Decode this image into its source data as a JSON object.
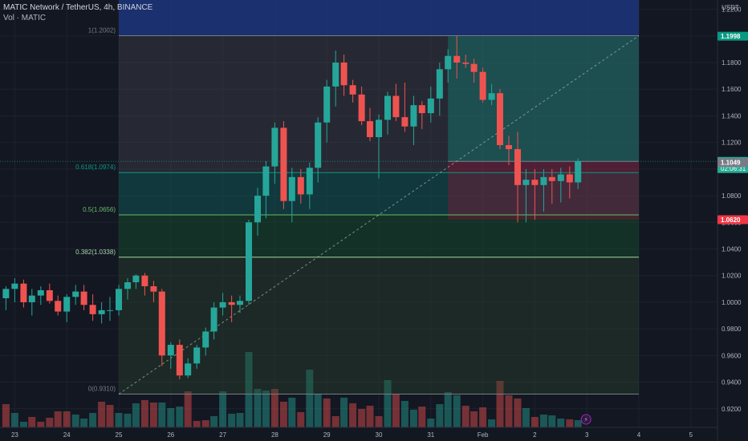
{
  "header": {
    "title": "MATIC Network / TetherUS, 4h, BINANCE",
    "volume_label": "Vol · MATIC"
  },
  "chart_data": {
    "type": "candlestick",
    "yaxis": {
      "unit": "USDT",
      "ticks": [
        "1.2200",
        "1.2000",
        "1.1800",
        "1.1600",
        "1.1400",
        "1.1200",
        "1.1000",
        "1.0800",
        "1.0600",
        "1.0400",
        "1.0200",
        "1.0000",
        "0.9800",
        "0.9600",
        "0.9400",
        "0.9200"
      ],
      "range": [
        0.906,
        1.227
      ]
    },
    "xaxis": {
      "ticks": [
        {
          "label": "23",
          "day": 23
        },
        {
          "label": "24",
          "day": 24
        },
        {
          "label": "25",
          "day": 25
        },
        {
          "label": "26",
          "day": 26
        },
        {
          "label": "27",
          "day": 27
        },
        {
          "label": "28",
          "day": 28
        },
        {
          "label": "29",
          "day": 29
        },
        {
          "label": "30",
          "day": 30
        },
        {
          "label": "31",
          "day": 31
        },
        {
          "label": "Feb",
          "day": 32
        },
        {
          "label": "2",
          "day": 33
        },
        {
          "label": "3",
          "day": 34
        },
        {
          "label": "4",
          "day": 35
        },
        {
          "label": "5",
          "day": 36
        }
      ]
    },
    "price_badges": [
      {
        "label": "1.1998",
        "value": 1.1998,
        "color": "#089981"
      },
      {
        "label": "1.1058",
        "value": 1.1058,
        "color": "#22ab94",
        "sub": "02:06:31"
      },
      {
        "label": "1.1049",
        "value": 1.1049,
        "color": "#787b86"
      },
      {
        "label": "1.0620",
        "value": 1.062,
        "color": "#f23645"
      }
    ],
    "fib_levels": [
      {
        "label": "1(1.2002)",
        "value": 1.2002
      },
      {
        "label": "0.618(1.0974)",
        "value": 1.0974
      },
      {
        "label": "0.5(1.0656)",
        "value": 1.0656
      },
      {
        "label": "0.382(1.0338)",
        "value": 1.0338
      },
      {
        "label": "0(0.9310)",
        "value": 0.931
      }
    ],
    "fib_day_range": [
      25.0,
      35.0
    ],
    "position": {
      "entry": 1.1058,
      "target": 1.1998,
      "stop": 1.062,
      "day_range": [
        31.33,
        35.0
      ]
    },
    "candles": [
      [
        22.83,
        1.003,
        1.012,
        0.994,
        1.01
      ],
      [
        23.0,
        1.01,
        1.018,
        1.0,
        1.014
      ],
      [
        23.17,
        1.014,
        1.017,
        0.996,
        1.0
      ],
      [
        23.33,
        1.0,
        1.01,
        0.99,
        1.005
      ],
      [
        23.5,
        1.005,
        1.012,
        0.998,
        1.009
      ],
      [
        23.67,
        1.009,
        1.014,
        0.999,
        1.001
      ],
      [
        23.83,
        1.001,
        1.005,
        0.99,
        0.993
      ],
      [
        24.0,
        0.993,
        1.006,
        0.985,
        1.004
      ],
      [
        24.17,
        1.004,
        1.013,
        0.998,
        1.008
      ],
      [
        24.33,
        1.008,
        1.013,
        0.994,
        0.998
      ],
      [
        24.5,
        0.998,
        1.006,
        0.986,
        0.991
      ],
      [
        24.67,
        0.991,
        1.0,
        0.984,
        0.994
      ],
      [
        24.83,
        0.994,
        1.004,
        0.986,
        0.994
      ],
      [
        25.0,
        0.994,
        1.013,
        0.99,
        1.01
      ],
      [
        25.17,
        1.01,
        1.018,
        1.002,
        1.015
      ],
      [
        25.33,
        1.015,
        1.021,
        1.01,
        1.02
      ],
      [
        25.5,
        1.02,
        1.022,
        1.005,
        1.012
      ],
      [
        25.67,
        1.012,
        1.016,
        1.0,
        1.008
      ],
      [
        25.83,
        1.008,
        1.01,
        0.952,
        0.96
      ],
      [
        26.0,
        0.96,
        0.97,
        0.95,
        0.968
      ],
      [
        26.17,
        0.968,
        0.972,
        0.942,
        0.945
      ],
      [
        26.33,
        0.945,
        0.958,
        0.943,
        0.954
      ],
      [
        26.5,
        0.954,
        0.968,
        0.95,
        0.966
      ],
      [
        26.67,
        0.966,
        0.981,
        0.96,
        0.978
      ],
      [
        26.83,
        0.978,
        1.0,
        0.972,
        0.996
      ],
      [
        27.0,
        0.996,
        1.007,
        0.99,
        1.0
      ],
      [
        27.17,
        1.0,
        1.005,
        0.985,
        0.998
      ],
      [
        27.33,
        0.998,
        1.005,
        0.992,
        1.001
      ],
      [
        27.5,
        1.001,
        1.062,
        0.998,
        1.06
      ],
      [
        27.67,
        1.06,
        1.086,
        1.05,
        1.08
      ],
      [
        27.83,
        1.08,
        1.106,
        1.063,
        1.102
      ],
      [
        28.0,
        1.102,
        1.135,
        1.089,
        1.131
      ],
      [
        28.17,
        1.131,
        1.136,
        1.07,
        1.076
      ],
      [
        28.33,
        1.076,
        1.101,
        1.06,
        1.094
      ],
      [
        28.5,
        1.094,
        1.1,
        1.074,
        1.081
      ],
      [
        28.67,
        1.081,
        1.105,
        1.07,
        1.101
      ],
      [
        28.83,
        1.101,
        1.139,
        1.09,
        1.135
      ],
      [
        29.0,
        1.135,
        1.167,
        1.12,
        1.162
      ],
      [
        29.17,
        1.162,
        1.189,
        1.147,
        1.18
      ],
      [
        29.33,
        1.18,
        1.186,
        1.155,
        1.163
      ],
      [
        29.5,
        1.163,
        1.167,
        1.15,
        1.156
      ],
      [
        29.67,
        1.156,
        1.162,
        1.133,
        1.136
      ],
      [
        29.83,
        1.136,
        1.146,
        1.121,
        1.124
      ],
      [
        30.0,
        1.124,
        1.141,
        1.093,
        1.137
      ],
      [
        30.17,
        1.137,
        1.158,
        1.126,
        1.155
      ],
      [
        30.33,
        1.155,
        1.164,
        1.136,
        1.139
      ],
      [
        30.5,
        1.139,
        1.165,
        1.128,
        1.132
      ],
      [
        30.67,
        1.132,
        1.155,
        1.118,
        1.148
      ],
      [
        30.83,
        1.148,
        1.151,
        1.13,
        1.142
      ],
      [
        31.0,
        1.142,
        1.162,
        1.135,
        1.153
      ],
      [
        31.17,
        1.153,
        1.18,
        1.14,
        1.175
      ],
      [
        31.33,
        1.175,
        1.19,
        1.165,
        1.185
      ],
      [
        31.5,
        1.185,
        1.2,
        1.168,
        1.18
      ],
      [
        31.67,
        1.18,
        1.186,
        1.176,
        1.179
      ],
      [
        31.83,
        1.179,
        1.183,
        1.165,
        1.173
      ],
      [
        32.0,
        1.173,
        1.176,
        1.15,
        1.152
      ],
      [
        32.17,
        1.152,
        1.164,
        1.148,
        1.157
      ],
      [
        32.33,
        1.157,
        1.16,
        1.115,
        1.118
      ],
      [
        32.5,
        1.118,
        1.125,
        1.103,
        1.115
      ],
      [
        32.67,
        1.115,
        1.128,
        1.06,
        1.088
      ],
      [
        32.83,
        1.088,
        1.1,
        1.06,
        1.092
      ],
      [
        33.0,
        1.092,
        1.1,
        1.062,
        1.088
      ],
      [
        33.17,
        1.088,
        1.1,
        1.068,
        1.094
      ],
      [
        33.33,
        1.094,
        1.1,
        1.074,
        1.091
      ],
      [
        33.5,
        1.091,
        1.101,
        1.075,
        1.096
      ],
      [
        33.67,
        1.096,
        1.102,
        1.078,
        1.09
      ],
      [
        33.83,
        1.09,
        1.108,
        1.085,
        1.106
      ]
    ],
    "volumes": [
      [
        22.83,
        29,
        "d"
      ],
      [
        23.0,
        18,
        "u"
      ],
      [
        23.17,
        7,
        "u"
      ],
      [
        23.33,
        13,
        "d"
      ],
      [
        23.5,
        7,
        "d"
      ],
      [
        23.67,
        12,
        "d"
      ],
      [
        23.83,
        20,
        "d"
      ],
      [
        24.0,
        20,
        "d"
      ],
      [
        24.17,
        16,
        "u"
      ],
      [
        24.33,
        11,
        "u"
      ],
      [
        24.5,
        18,
        "u"
      ],
      [
        24.67,
        32,
        "d"
      ],
      [
        24.83,
        28,
        "d"
      ],
      [
        25.0,
        18,
        "u"
      ],
      [
        25.17,
        17,
        "u"
      ],
      [
        25.33,
        30,
        "u"
      ],
      [
        25.5,
        34,
        "d"
      ],
      [
        25.67,
        31,
        "d"
      ],
      [
        25.83,
        31,
        "u"
      ],
      [
        26.0,
        24,
        "u"
      ],
      [
        26.17,
        26,
        "u"
      ],
      [
        26.33,
        45,
        "d"
      ],
      [
        26.5,
        8,
        "d"
      ],
      [
        26.67,
        9,
        "d"
      ],
      [
        26.83,
        14,
        "u"
      ],
      [
        27.0,
        45,
        "u"
      ],
      [
        27.17,
        17,
        "u"
      ],
      [
        27.33,
        18,
        "u"
      ],
      [
        27.5,
        94,
        "u"
      ],
      [
        27.67,
        48,
        "u"
      ],
      [
        27.83,
        46,
        "u"
      ],
      [
        28.0,
        48,
        "d"
      ],
      [
        28.17,
        32,
        "d"
      ],
      [
        28.33,
        37,
        "u"
      ],
      [
        28.5,
        19,
        "d"
      ],
      [
        28.67,
        72,
        "u"
      ],
      [
        28.83,
        42,
        "u"
      ],
      [
        29.0,
        36,
        "d"
      ],
      [
        29.17,
        14,
        "d"
      ],
      [
        29.33,
        37,
        "u"
      ],
      [
        29.5,
        30,
        "d"
      ],
      [
        29.67,
        23,
        "d"
      ],
      [
        29.83,
        27,
        "d"
      ],
      [
        30.0,
        14,
        "d"
      ],
      [
        30.17,
        59,
        "u"
      ],
      [
        30.33,
        41,
        "d"
      ],
      [
        30.5,
        33,
        "u"
      ],
      [
        30.67,
        22,
        "u"
      ],
      [
        30.83,
        26,
        "d"
      ],
      [
        31.0,
        11,
        "u"
      ],
      [
        31.17,
        29,
        "u"
      ],
      [
        31.33,
        44,
        "u"
      ],
      [
        31.5,
        40,
        "u"
      ],
      [
        31.67,
        27,
        "d"
      ],
      [
        31.83,
        20,
        "d"
      ],
      [
        32.0,
        25,
        "d"
      ],
      [
        32.17,
        10,
        "u"
      ],
      [
        32.33,
        58,
        "d"
      ],
      [
        32.5,
        40,
        "d"
      ],
      [
        32.67,
        36,
        "d"
      ],
      [
        32.83,
        24,
        "u"
      ],
      [
        33.0,
        13,
        "d"
      ],
      [
        33.17,
        16,
        "u"
      ],
      [
        33.33,
        15,
        "u"
      ],
      [
        33.5,
        11,
        "u"
      ],
      [
        33.67,
        10,
        "d"
      ],
      [
        33.83,
        9,
        "u"
      ]
    ]
  }
}
